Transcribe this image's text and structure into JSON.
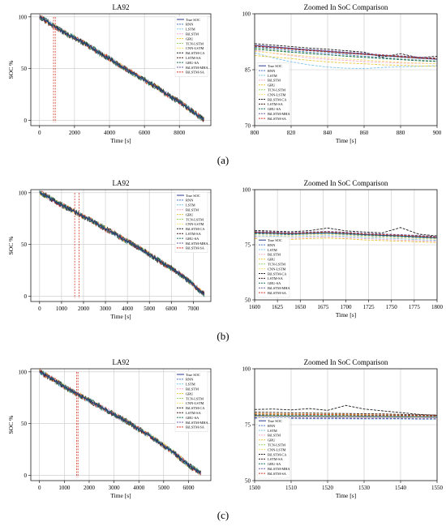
{
  "chart_data": [
    {
      "type": "line",
      "title": "LA92",
      "xlabel": "Time [s]",
      "ylabel": "SOC %",
      "xlim": [
        -500,
        9800
      ],
      "ylim": [
        -5,
        103
      ],
      "xticks": [
        0,
        2000,
        4000,
        6000,
        8000
      ],
      "yticks": [
        0,
        50,
        100
      ],
      "grid": true,
      "legend_position": "top-right",
      "zoom_window": [
        800,
        900
      ],
      "x": [
        0,
        400,
        800,
        1200,
        1600,
        2000,
        2400,
        2800,
        3200,
        3600,
        4000,
        4400,
        4800,
        5200,
        5600,
        6000,
        6400,
        6800,
        7200,
        7600,
        8000,
        8400,
        8800,
        9200,
        9400
      ],
      "series": [
        {
          "name": "True SOC",
          "values": [
            100,
            96,
            91,
            87,
            83,
            80,
            76,
            72,
            68,
            63,
            60,
            55,
            51,
            47,
            43,
            39,
            35,
            31,
            26,
            22,
            18,
            13,
            8,
            3,
            1
          ]
        }
      ]
    },
    {
      "type": "line",
      "title": "Zoomed In SoC Comparison",
      "xlabel": "Time [s]",
      "ylabel": "",
      "xlim": [
        800,
        900
      ],
      "ylim": [
        70,
        100
      ],
      "xticks": [
        800,
        820,
        840,
        860,
        880,
        900
      ],
      "yticks": [
        70,
        85,
        100
      ],
      "grid": true,
      "legend_position": "left",
      "x": [
        800,
        810,
        820,
        830,
        840,
        850,
        860,
        870,
        880,
        890,
        900
      ],
      "series": [
        {
          "name": "True SOC",
          "values": [
            91.5,
            91.1,
            90.7,
            90.3,
            89.9,
            89.5,
            89.2,
            88.8,
            88.5,
            88.1,
            87.8
          ]
        },
        {
          "name": "RNN",
          "values": [
            91.0,
            90.6,
            90.1,
            89.7,
            89.4,
            89.0,
            88.6,
            88.3,
            87.9,
            87.6,
            87.3
          ]
        },
        {
          "name": "LSTM",
          "values": [
            89.5,
            88.2,
            87.1,
            86.3,
            85.7,
            85.4,
            85.3,
            85.6,
            85.8,
            85.9,
            86.1
          ]
        },
        {
          "name": "BiLSTM",
          "values": [
            90.2,
            89.4,
            88.8,
            88.2,
            87.8,
            87.5,
            87.2,
            87.0,
            86.8,
            86.7,
            86.6
          ]
        },
        {
          "name": "GRU",
          "values": [
            88.8,
            88.4,
            88.0,
            87.5,
            87.1,
            86.8,
            86.6,
            86.3,
            86.2,
            86.0,
            85.9
          ]
        },
        {
          "name": "TCN-LSTM",
          "values": [
            90.8,
            90.3,
            89.8,
            89.4,
            89.0,
            88.7,
            88.4,
            88.1,
            87.8,
            87.5,
            87.3
          ]
        },
        {
          "name": "CNN-LSTM",
          "values": [
            89.9,
            89.5,
            89.0,
            88.6,
            88.2,
            87.9,
            87.6,
            87.3,
            87.0,
            86.8,
            86.6
          ]
        },
        {
          "name": "BiLSTM-CA",
          "values": [
            92.0,
            91.6,
            91.2,
            90.8,
            90.5,
            90.1,
            89.7,
            88.4,
            89.3,
            88.2,
            88.6
          ]
        },
        {
          "name": "LSTM-SA",
          "values": [
            91.3,
            90.9,
            90.5,
            90.1,
            89.8,
            89.4,
            89.1,
            88.8,
            88.4,
            88.1,
            87.9
          ]
        },
        {
          "name": "GRU-SA",
          "values": [
            90.5,
            90.1,
            89.7,
            89.3,
            89.0,
            88.6,
            88.3,
            88.0,
            87.7,
            87.4,
            87.2
          ]
        },
        {
          "name": "BiLSTM-MHA",
          "values": [
            91.6,
            91.2,
            90.8,
            90.4,
            90.1,
            89.7,
            89.4,
            89.0,
            88.7,
            88.4,
            88.1
          ]
        },
        {
          "name": "BiLSTM-SA",
          "values": [
            91.4,
            91.0,
            90.6,
            90.2,
            89.9,
            89.5,
            89.2,
            88.9,
            88.6,
            88.2,
            88.0
          ]
        }
      ]
    },
    {
      "type": "line",
      "title": "LA92",
      "xlabel": "Time [s]",
      "ylabel": "SOC %",
      "xlim": [
        -400,
        7800
      ],
      "ylim": [
        -5,
        103
      ],
      "xticks": [
        0,
        1000,
        2000,
        3000,
        4000,
        5000,
        6000,
        7000
      ],
      "yticks": [
        0,
        50,
        100
      ],
      "grid": true,
      "legend_position": "top-right",
      "zoom_window": [
        1600,
        1800
      ],
      "x": [
        0,
        300,
        600,
        900,
        1200,
        1500,
        1800,
        2100,
        2400,
        2700,
        3000,
        3300,
        3600,
        3900,
        4200,
        4500,
        4800,
        5100,
        5400,
        5700,
        6000,
        6300,
        6600,
        6900,
        7200,
        7500
      ],
      "series": [
        {
          "name": "True SOC",
          "values": [
            100,
            97,
            93,
            89,
            86,
            83,
            79,
            76,
            73,
            69,
            65,
            62,
            58,
            54,
            51,
            47,
            43,
            39,
            35,
            31,
            27,
            23,
            18,
            13,
            7,
            2
          ]
        }
      ]
    },
    {
      "type": "line",
      "title": "Zoomed In SoC Comparison",
      "xlabel": "Time [s]",
      "ylabel": "",
      "xlim": [
        1600,
        1800
      ],
      "ylim": [
        50,
        100
      ],
      "xticks": [
        1600,
        1625,
        1650,
        1675,
        1700,
        1725,
        1750,
        1775,
        1800
      ],
      "yticks": [
        50,
        75,
        100
      ],
      "grid": true,
      "legend_position": "left",
      "x": [
        1600,
        1620,
        1640,
        1660,
        1680,
        1700,
        1720,
        1740,
        1760,
        1780,
        1800
      ],
      "series": [
        {
          "name": "True SOC",
          "values": [
            80.5,
            80.3,
            80.0,
            80.2,
            80.4,
            80.1,
            79.6,
            79.3,
            79.0,
            78.6,
            78.2
          ]
        },
        {
          "name": "RNN",
          "values": [
            80.0,
            79.8,
            79.5,
            79.9,
            80.1,
            79.7,
            79.2,
            78.9,
            78.6,
            78.2,
            77.9
          ]
        },
        {
          "name": "LSTM",
          "values": [
            79.0,
            78.9,
            78.6,
            78.9,
            79.1,
            78.8,
            78.3,
            78.0,
            77.7,
            77.3,
            77.0
          ]
        },
        {
          "name": "BiLSTM",
          "values": [
            78.4,
            78.2,
            77.9,
            78.3,
            78.6,
            78.2,
            77.8,
            77.4,
            77.1,
            76.8,
            76.5
          ]
        },
        {
          "name": "GRU",
          "values": [
            77.8,
            77.6,
            77.4,
            77.8,
            78.0,
            77.7,
            77.2,
            76.9,
            76.6,
            76.3,
            76.0
          ]
        },
        {
          "name": "TCN-LSTM",
          "values": [
            80.2,
            80.0,
            79.7,
            80.1,
            80.3,
            79.9,
            79.4,
            79.1,
            78.8,
            78.4,
            78.0
          ]
        },
        {
          "name": "CNN-LSTM",
          "values": [
            79.5,
            79.3,
            79.0,
            79.4,
            79.7,
            79.3,
            78.8,
            78.5,
            78.2,
            77.8,
            77.5
          ]
        },
        {
          "name": "BiLSTM-CA",
          "values": [
            81.5,
            81.2,
            80.9,
            81.4,
            82.6,
            81.3,
            80.8,
            80.4,
            82.8,
            79.8,
            79.0
          ]
        },
        {
          "name": "LSTM-SA",
          "values": [
            80.8,
            80.6,
            80.3,
            80.6,
            80.9,
            80.5,
            80.0,
            79.7,
            79.3,
            79.0,
            78.6
          ]
        },
        {
          "name": "GRU-SA",
          "values": [
            80.3,
            80.1,
            79.8,
            80.2,
            80.4,
            80.0,
            79.5,
            79.2,
            78.9,
            78.5,
            78.1
          ]
        },
        {
          "name": "BiLSTM-MHA",
          "values": [
            81.0,
            80.8,
            80.5,
            80.8,
            81.1,
            80.7,
            80.2,
            79.9,
            79.6,
            79.2,
            78.8
          ]
        },
        {
          "name": "BiLSTM-SA",
          "values": [
            80.7,
            80.5,
            80.2,
            80.5,
            80.8,
            80.4,
            79.9,
            79.6,
            79.3,
            78.9,
            78.5
          ]
        }
      ]
    },
    {
      "type": "line",
      "title": "LA92",
      "xlabel": "Time [s]",
      "ylabel": "SOC %",
      "xlim": [
        -350,
        6900
      ],
      "ylim": [
        -5,
        103
      ],
      "xticks": [
        0,
        1000,
        2000,
        3000,
        4000,
        5000,
        6000
      ],
      "yticks": [
        0,
        50,
        100
      ],
      "grid": true,
      "legend_position": "top-right",
      "zoom_window": [
        1500,
        1550
      ],
      "x": [
        0,
        300,
        600,
        900,
        1200,
        1500,
        1800,
        2100,
        2400,
        2700,
        3000,
        3300,
        3600,
        3900,
        4200,
        4500,
        4800,
        5100,
        5400,
        5700,
        6000,
        6300,
        6500
      ],
      "series": [
        {
          "name": "True SOC",
          "values": [
            100,
            96,
            92,
            87,
            83,
            79,
            75,
            71,
            67,
            63,
            59,
            55,
            51,
            46,
            42,
            37,
            32,
            27,
            22,
            16,
            10,
            5,
            2
          ]
        }
      ]
    },
    {
      "type": "line",
      "title": "Zoomed In SoC Comparison",
      "xlabel": "Time [s]",
      "ylabel": "",
      "xlim": [
        1500,
        1550
      ],
      "ylim": [
        50,
        100
      ],
      "xticks": [
        1500,
        1510,
        1520,
        1530,
        1540,
        1550
      ],
      "yticks": [
        50,
        75,
        100
      ],
      "grid": true,
      "legend_position": "left",
      "x": [
        1500,
        1505,
        1510,
        1515,
        1520,
        1525,
        1530,
        1535,
        1540,
        1545,
        1550
      ],
      "series": [
        {
          "name": "True SOC",
          "values": [
            79.0,
            78.9,
            78.8,
            78.8,
            78.7,
            78.7,
            78.6,
            78.6,
            78.5,
            78.5,
            78.4
          ]
        },
        {
          "name": "RNN",
          "values": [
            78.5,
            78.4,
            78.3,
            78.3,
            78.3,
            78.2,
            78.2,
            78.1,
            78.1,
            78.0,
            78.0
          ]
        },
        {
          "name": "LSTM",
          "values": [
            77.8,
            77.7,
            77.7,
            77.6,
            77.6,
            77.6,
            77.5,
            77.5,
            77.5,
            77.4,
            77.4
          ]
        },
        {
          "name": "BiLSTM",
          "values": [
            78.2,
            78.1,
            78.0,
            78.0,
            77.9,
            77.9,
            77.9,
            77.8,
            77.8,
            77.8,
            77.7
          ]
        },
        {
          "name": "GRU",
          "values": [
            80.0,
            79.9,
            79.8,
            79.7,
            79.7,
            79.6,
            79.5,
            79.4,
            79.3,
            79.2,
            79.1
          ]
        },
        {
          "name": "TCN-LSTM",
          "values": [
            79.6,
            79.5,
            79.4,
            79.4,
            79.3,
            79.3,
            79.2,
            79.1,
            79.1,
            79.0,
            78.9
          ]
        },
        {
          "name": "CNN-LSTM",
          "values": [
            78.8,
            78.8,
            78.7,
            78.7,
            78.6,
            78.6,
            78.5,
            78.5,
            78.4,
            78.4,
            78.3
          ]
        },
        {
          "name": "BiLSTM-CA",
          "values": [
            81.8,
            82.0,
            81.6,
            82.2,
            81.4,
            83.6,
            82.0,
            81.2,
            80.4,
            79.6,
            79.2
          ]
        },
        {
          "name": "LSTM-SA",
          "values": [
            80.6,
            80.5,
            80.3,
            80.2,
            80.1,
            80.0,
            79.9,
            79.8,
            79.6,
            79.4,
            79.3
          ]
        },
        {
          "name": "GRU-SA",
          "values": [
            79.3,
            79.2,
            79.1,
            79.1,
            79.0,
            79.0,
            78.9,
            78.9,
            78.8,
            78.8,
            78.7
          ]
        },
        {
          "name": "BiLSTM-MHA",
          "values": [
            78.0,
            77.9,
            77.9,
            77.8,
            77.8,
            77.8,
            77.7,
            77.7,
            77.7,
            77.6,
            77.6
          ]
        },
        {
          "name": "BiLSTM-SA",
          "values": [
            79.8,
            79.7,
            79.6,
            79.5,
            79.5,
            79.4,
            79.3,
            79.3,
            79.2,
            79.1,
            79.0
          ]
        }
      ]
    }
  ],
  "series_colors": {
    "True SOC": "#2b3a8f",
    "RNN": "#4a76c8",
    "LSTM": "#7fc4ec",
    "BiLSTM": "#f4a6c8",
    "GRU": "#e8c93c",
    "TCN-LSTM": "#9bd36a",
    "CNN-LSTM": "#f5e06e",
    "BiLSTM-CA": "#1f1f1f",
    "LSTM-SA": "#3b1d12",
    "GRU-SA": "#1c6b5a",
    "BiLSTM-MHA": "#6b5aa6",
    "BiLSTM-SA": "#d43a2a"
  },
  "series_dashed": [
    "RNN",
    "LSTM",
    "BiLSTM",
    "GRU",
    "TCN-LSTM",
    "CNN-LSTM",
    "BiLSTM-CA",
    "LSTM-SA",
    "GRU-SA",
    "BiLSTM-MHA",
    "BiLSTM-SA"
  ],
  "zoom_marker_color": "#d43a2a",
  "row_labels": [
    "(a)",
    "(b)",
    "(c)"
  ]
}
